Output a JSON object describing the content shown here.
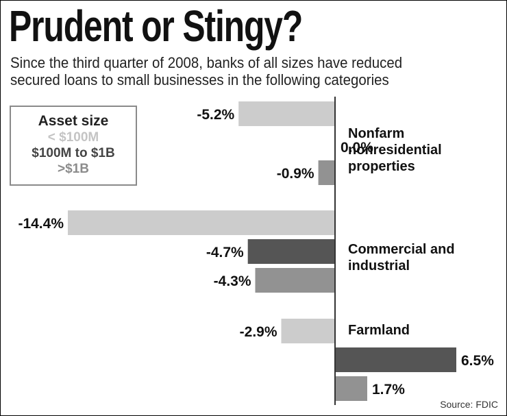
{
  "chart_data": {
    "type": "bar",
    "orientation": "horizontal",
    "title": "Prudent or Stingy?",
    "subtitle_lines": [
      "Since the third quarter of 2008, banks of all sizes have reduced",
      "secured loans to small businesses in the following categories"
    ],
    "legend_title": "Asset size",
    "unit": "%",
    "xlim": [
      -14.4,
      6.5
    ],
    "series": [
      {
        "name": "< $100M",
        "color": "#cccccc"
      },
      {
        "name": "$100M to $1B",
        "color": "#555555"
      },
      {
        "name": ">$1B",
        "color": "#929292"
      }
    ],
    "categories": [
      {
        "name": "Nonfarm nonresidential properties",
        "label_lines": [
          "Nonfarm",
          "nonresidential",
          "properties"
        ],
        "values": [
          -5.2,
          0.0,
          -0.9
        ],
        "labels": [
          "-5.2%",
          "0.0%",
          "-0.9%"
        ]
      },
      {
        "name": "Commercial and industrial",
        "label_lines": [
          "Commercial and",
          "industrial"
        ],
        "values": [
          -14.4,
          -4.7,
          -4.3
        ],
        "labels": [
          "-14.4%",
          "-4.7%",
          "-4.3%"
        ]
      },
      {
        "name": "Farmland",
        "label_lines": [
          "Farmland"
        ],
        "values": [
          -2.9,
          6.5,
          1.7
        ],
        "labels": [
          "-2.9%",
          "6.5%",
          "1.7%"
        ]
      }
    ],
    "source": "Source: FDIC"
  }
}
